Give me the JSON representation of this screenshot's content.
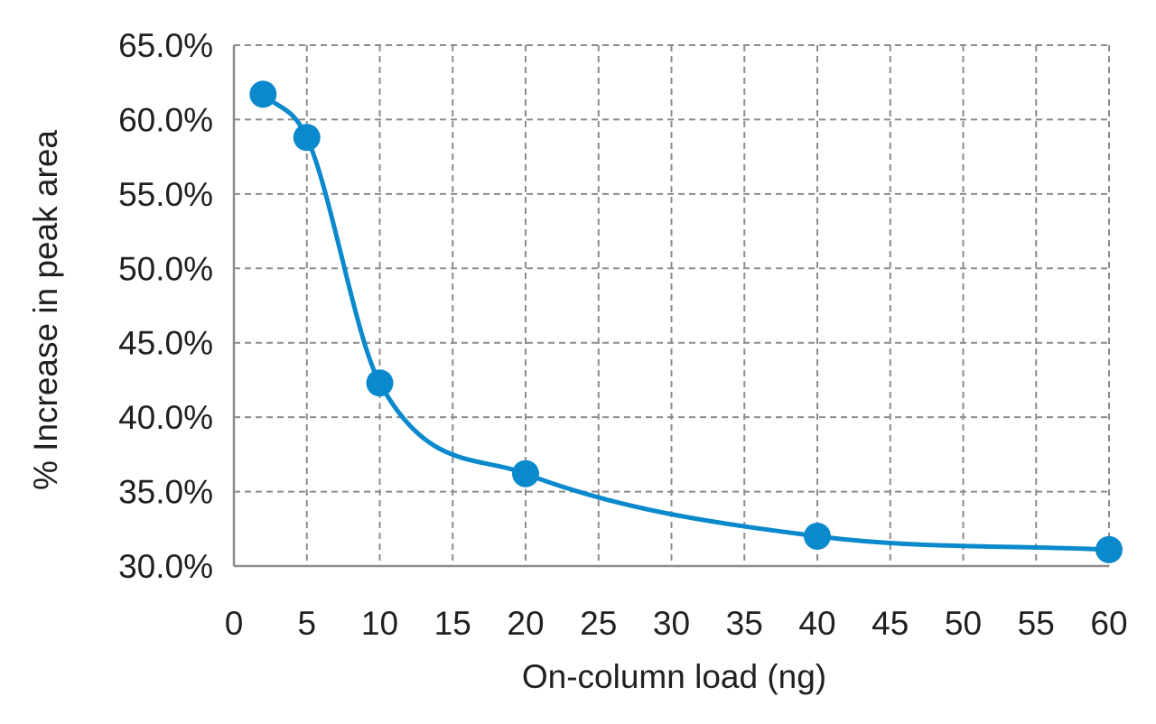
{
  "chart_data": {
    "type": "line",
    "smooth": true,
    "xlabel": "On-column load (ng)",
    "ylabel": "% Increase in peak area",
    "xlim": [
      0,
      60
    ],
    "ylim": [
      30,
      65
    ],
    "x_ticks": [
      0,
      5,
      10,
      15,
      20,
      25,
      30,
      35,
      40,
      45,
      50,
      55,
      60
    ],
    "x_tick_labels": [
      "0",
      "5",
      "10",
      "15",
      "20",
      "25",
      "30",
      "35",
      "40",
      "45",
      "50",
      "55",
      "60"
    ],
    "y_ticks": [
      30,
      35,
      40,
      45,
      50,
      55,
      60,
      65
    ],
    "y_tick_labels": [
      "30.0%",
      "35.0%",
      "40.0%",
      "45.0%",
      "50.0%",
      "55.0%",
      "60.0%",
      "65.0%"
    ],
    "grid": true,
    "grid_style": "dashed",
    "legend": "none",
    "series": [
      {
        "color": "#0a89cc",
        "x": [
          2,
          5,
          10,
          20,
          40,
          60
        ],
        "y": [
          61.7,
          58.8,
          42.3,
          36.2,
          32.0,
          31.1
        ]
      }
    ]
  }
}
